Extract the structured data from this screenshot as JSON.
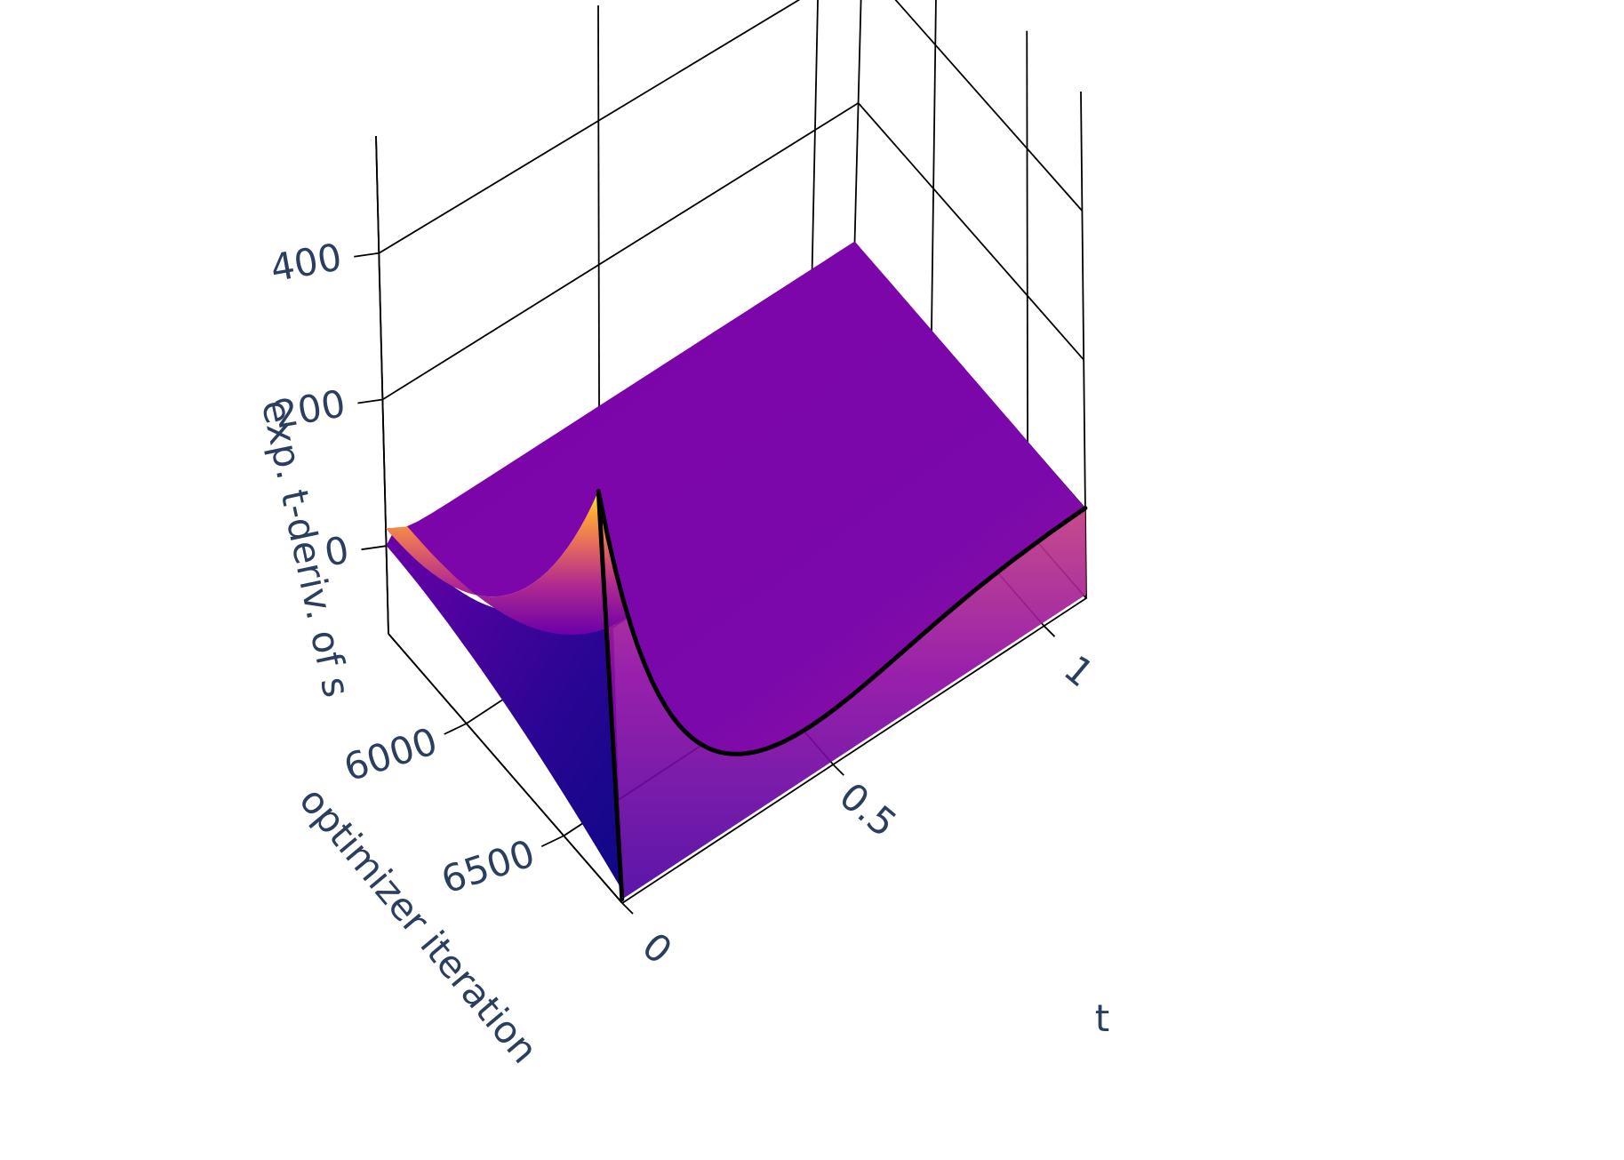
{
  "chart_data": {
    "type": "surface",
    "colorscale": "plasma",
    "colors": {
      "low": "#0d0887",
      "mid": "#7e03a8",
      "high": "#f0f921",
      "text": "#2a3f5f"
    },
    "axes": {
      "x": {
        "title": "t",
        "range": [
          0,
          1.1
        ],
        "tickvals": [
          0,
          0.5,
          1
        ],
        "ticktext": [
          "0",
          "0.5",
          "1"
        ]
      },
      "y": {
        "title": "optimizer iteration",
        "range": [
          5600,
          6800
        ],
        "tickvals": [
          6000,
          6500
        ],
        "ticktext": [
          "6000",
          "6500"
        ]
      },
      "z": {
        "title": "exp. t-deriv. of s",
        "range": [
          -120,
          560
        ],
        "tickvals": [
          0,
          200,
          400
        ],
        "ticktext": [
          "0",
          "200",
          "400"
        ]
      }
    },
    "grid": true,
    "peak": {
      "t": 0,
      "iteration": 6800,
      "value": 390
    },
    "highlighted_iteration": 6800
  }
}
